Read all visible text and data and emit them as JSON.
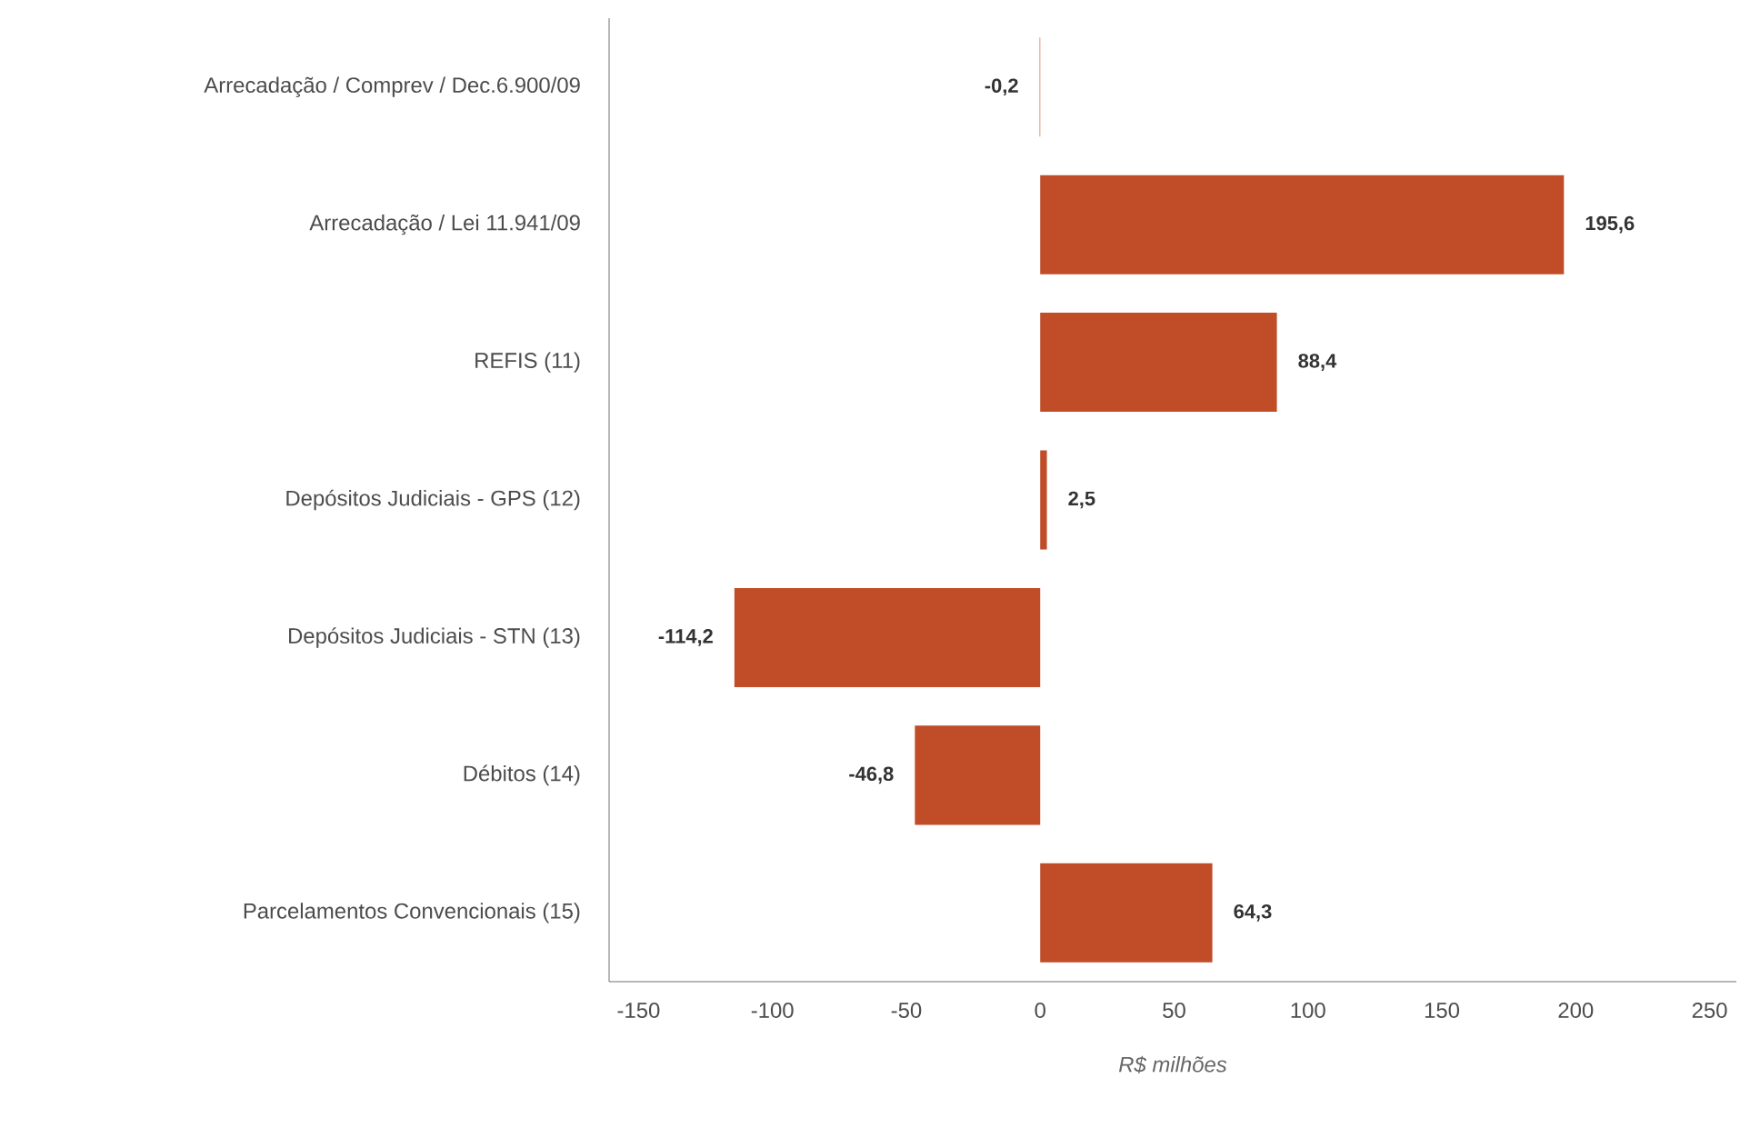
{
  "chart_data": {
    "type": "bar",
    "orientation": "horizontal",
    "categories": [
      "Arrecadação / Comprev / Dec.6.900/09",
      "Arrecadação / Lei 11.941/09",
      "REFIS (11)",
      "Depósitos Judiciais - GPS (12)",
      "Depósitos Judiciais - STN (13)",
      "Débitos  (14)",
      "Parcelamentos Convencionais (15)"
    ],
    "values": [
      -0.2,
      195.6,
      88.4,
      2.5,
      -114.2,
      -46.8,
      64.3
    ],
    "value_labels": [
      "-0,2",
      "195,6",
      "88,4",
      "2,5",
      "-114,2",
      "-46,8",
      "64,3"
    ],
    "color": "#c04d28",
    "xlabel": "R$ milhões",
    "xlim": [
      -161,
      260
    ],
    "xticks": [
      -150,
      -100,
      -50,
      0,
      50,
      100,
      150,
      200,
      250
    ],
    "grid": false
  }
}
